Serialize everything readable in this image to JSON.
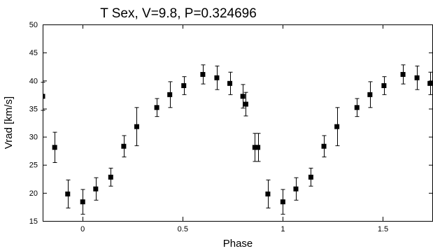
{
  "chart_data": {
    "type": "scatter",
    "title": "T Sex, V=9.8, P=0.324696",
    "xlabel": "Phase",
    "ylabel": "Vrad [km/s]",
    "xlim": [
      -0.2,
      1.75
    ],
    "ylim": [
      15,
      50
    ],
    "xticks": [
      0,
      0.5,
      1,
      1.5
    ],
    "xtick_labels": [
      "0",
      "0.5",
      "1",
      "1.5"
    ],
    "yticks": [
      15,
      20,
      25,
      30,
      35,
      40,
      45,
      50
    ],
    "ytick_labels": [
      "15",
      "20",
      "25",
      "30",
      "35",
      "40",
      "45",
      "50"
    ],
    "grid": false,
    "legend": "none",
    "marker": "filled-square",
    "error_bars": true,
    "series": [
      {
        "points": [
          {
            "x": -0.2,
            "y": 37.2,
            "err": 2.5
          },
          {
            "x": -0.14,
            "y": 28.1,
            "err": 2.7
          },
          {
            "x": -0.075,
            "y": 19.8,
            "err": 2.5
          },
          {
            "x": 0.0,
            "y": 18.4,
            "err": 2.2
          },
          {
            "x": 0.065,
            "y": 20.7,
            "err": 2.0
          },
          {
            "x": 0.14,
            "y": 22.8,
            "err": 1.6
          },
          {
            "x": 0.205,
            "y": 28.3,
            "err": 1.9
          },
          {
            "x": 0.27,
            "y": 31.8,
            "err": 3.4
          },
          {
            "x": 0.37,
            "y": 35.2,
            "err": 1.6
          },
          {
            "x": 0.435,
            "y": 37.5,
            "err": 2.3
          },
          {
            "x": 0.505,
            "y": 39.1,
            "err": 1.6
          },
          {
            "x": 0.6,
            "y": 41.1,
            "err": 1.7
          },
          {
            "x": 0.67,
            "y": 40.5,
            "err": 2.1
          },
          {
            "x": 0.735,
            "y": 39.5,
            "err": 2.0
          },
          {
            "x": 0.8,
            "y": 37.2,
            "err": 2.1
          },
          {
            "x": 0.815,
            "y": 35.8,
            "err": 2.1
          },
          {
            "x": 0.86,
            "y": 28.1,
            "err": 2.5
          },
          {
            "x": 0.875,
            "y": 28.1,
            "err": 2.5
          },
          {
            "x": 0.925,
            "y": 19.8,
            "err": 2.5
          },
          {
            "x": 1.0,
            "y": 18.4,
            "err": 2.2
          },
          {
            "x": 1.065,
            "y": 20.7,
            "err": 2.0
          },
          {
            "x": 1.14,
            "y": 22.8,
            "err": 1.6
          },
          {
            "x": 1.205,
            "y": 28.3,
            "err": 1.9
          },
          {
            "x": 1.27,
            "y": 31.8,
            "err": 3.4
          },
          {
            "x": 1.37,
            "y": 35.2,
            "err": 1.6
          },
          {
            "x": 1.435,
            "y": 37.5,
            "err": 2.3
          },
          {
            "x": 1.505,
            "y": 39.1,
            "err": 1.6
          },
          {
            "x": 1.6,
            "y": 41.1,
            "err": 1.7
          },
          {
            "x": 1.67,
            "y": 40.5,
            "err": 2.1
          },
          {
            "x": 1.735,
            "y": 39.5,
            "err": 2.0
          }
        ]
      }
    ]
  }
}
